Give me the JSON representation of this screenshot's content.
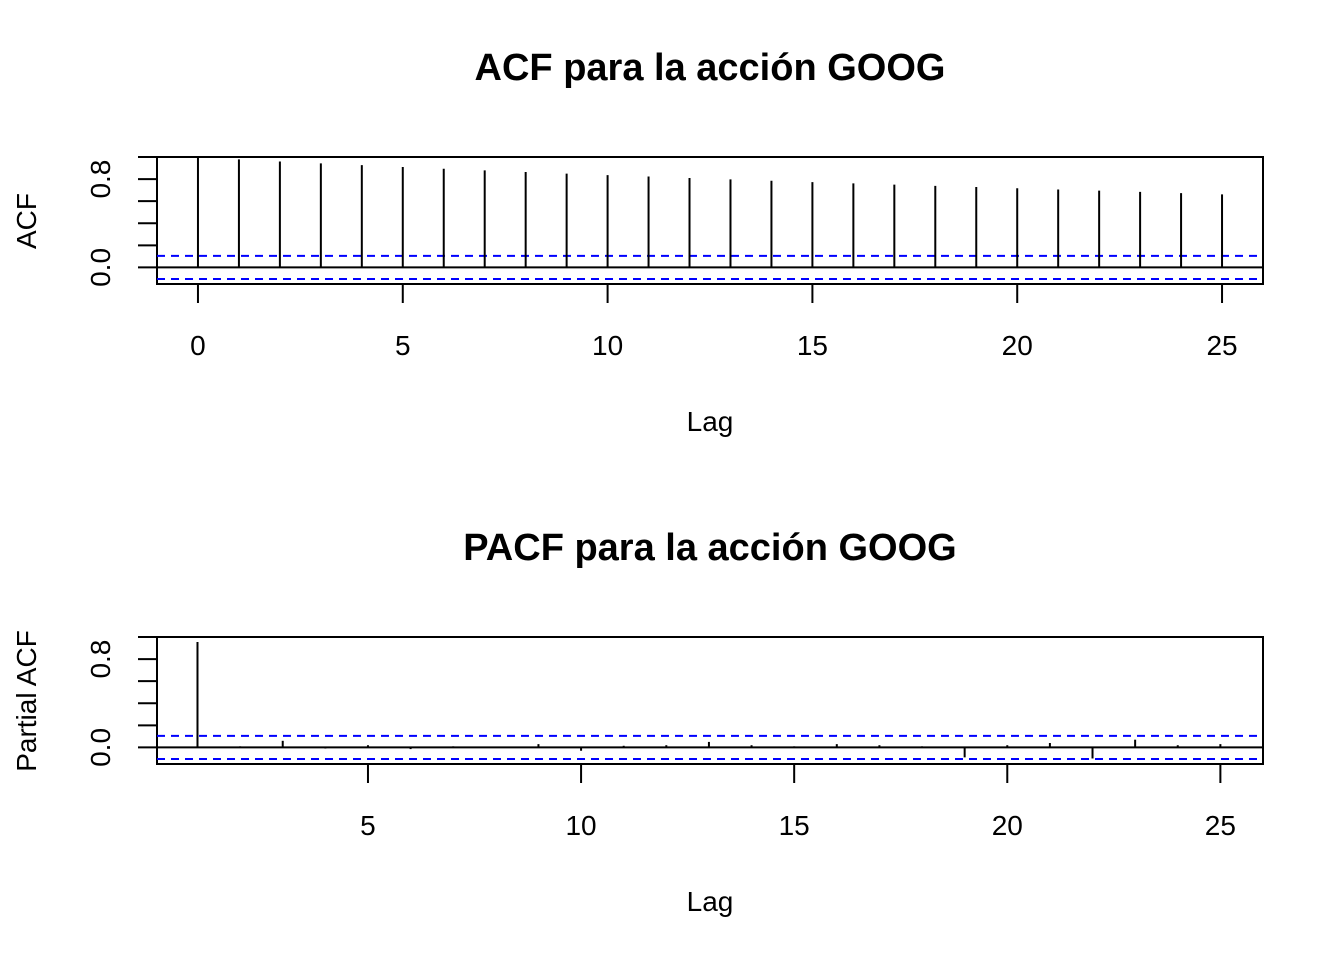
{
  "chart_data": [
    {
      "type": "bar",
      "title": "ACF para la acción GOOG",
      "xlabel": "Lag",
      "ylabel": "ACF",
      "x": [
        0,
        1,
        2,
        3,
        4,
        5,
        6,
        7,
        8,
        9,
        10,
        11,
        12,
        13,
        14,
        15,
        16,
        17,
        18,
        19,
        20,
        21,
        22,
        23,
        24,
        25
      ],
      "values": [
        1.0,
        0.978,
        0.959,
        0.942,
        0.926,
        0.91,
        0.894,
        0.879,
        0.864,
        0.85,
        0.836,
        0.823,
        0.81,
        0.797,
        0.785,
        0.773,
        0.761,
        0.75,
        0.739,
        0.728,
        0.717,
        0.706,
        0.695,
        0.684,
        0.673,
        0.662
      ],
      "xlim": [
        -1,
        26
      ],
      "ylim": [
        -0.15,
        1.0
      ],
      "x_ticks": [
        0,
        5,
        10,
        15,
        20,
        25
      ],
      "x_tick_labels": [
        "0",
        "5",
        "10",
        "15",
        "20",
        "25"
      ],
      "y_ticks": [
        0,
        0.2,
        0.4,
        0.6,
        0.8,
        1.0
      ],
      "y_tick_labels": [
        "0.0",
        "",
        "",
        "",
        "0.8",
        ""
      ],
      "confidence_band": 0.105,
      "bar_color": "#000000",
      "band_color": "#0000ff",
      "grid": false
    },
    {
      "type": "bar",
      "title": "PACF para la acción GOOG",
      "xlabel": "Lag",
      "ylabel": "Partial ACF",
      "x": [
        1,
        2,
        3,
        4,
        5,
        6,
        7,
        8,
        9,
        10,
        11,
        12,
        13,
        14,
        15,
        16,
        17,
        18,
        19,
        20,
        21,
        22,
        23,
        24,
        25
      ],
      "values": [
        0.955,
        0.01,
        0.06,
        -0.01,
        0.02,
        -0.015,
        0.01,
        0.005,
        0.03,
        -0.03,
        0.015,
        0.02,
        0.05,
        0.02,
        0.01,
        0.03,
        0.02,
        0.01,
        -0.09,
        0.02,
        0.04,
        -0.1,
        0.07,
        0.02,
        0.03
      ],
      "xlim": [
        0.05,
        26
      ],
      "ylim": [
        -0.15,
        1.0
      ],
      "x_ticks": [
        5,
        10,
        15,
        20,
        25
      ],
      "x_tick_labels": [
        "5",
        "10",
        "15",
        "20",
        "25"
      ],
      "y_ticks": [
        0,
        0.2,
        0.4,
        0.6,
        0.8,
        1.0
      ],
      "y_tick_labels": [
        "0.0",
        "",
        "",
        "",
        "0.8",
        ""
      ],
      "confidence_band": 0.105,
      "bar_color": "#000000",
      "band_color": "#0000ff",
      "grid": false
    }
  ]
}
